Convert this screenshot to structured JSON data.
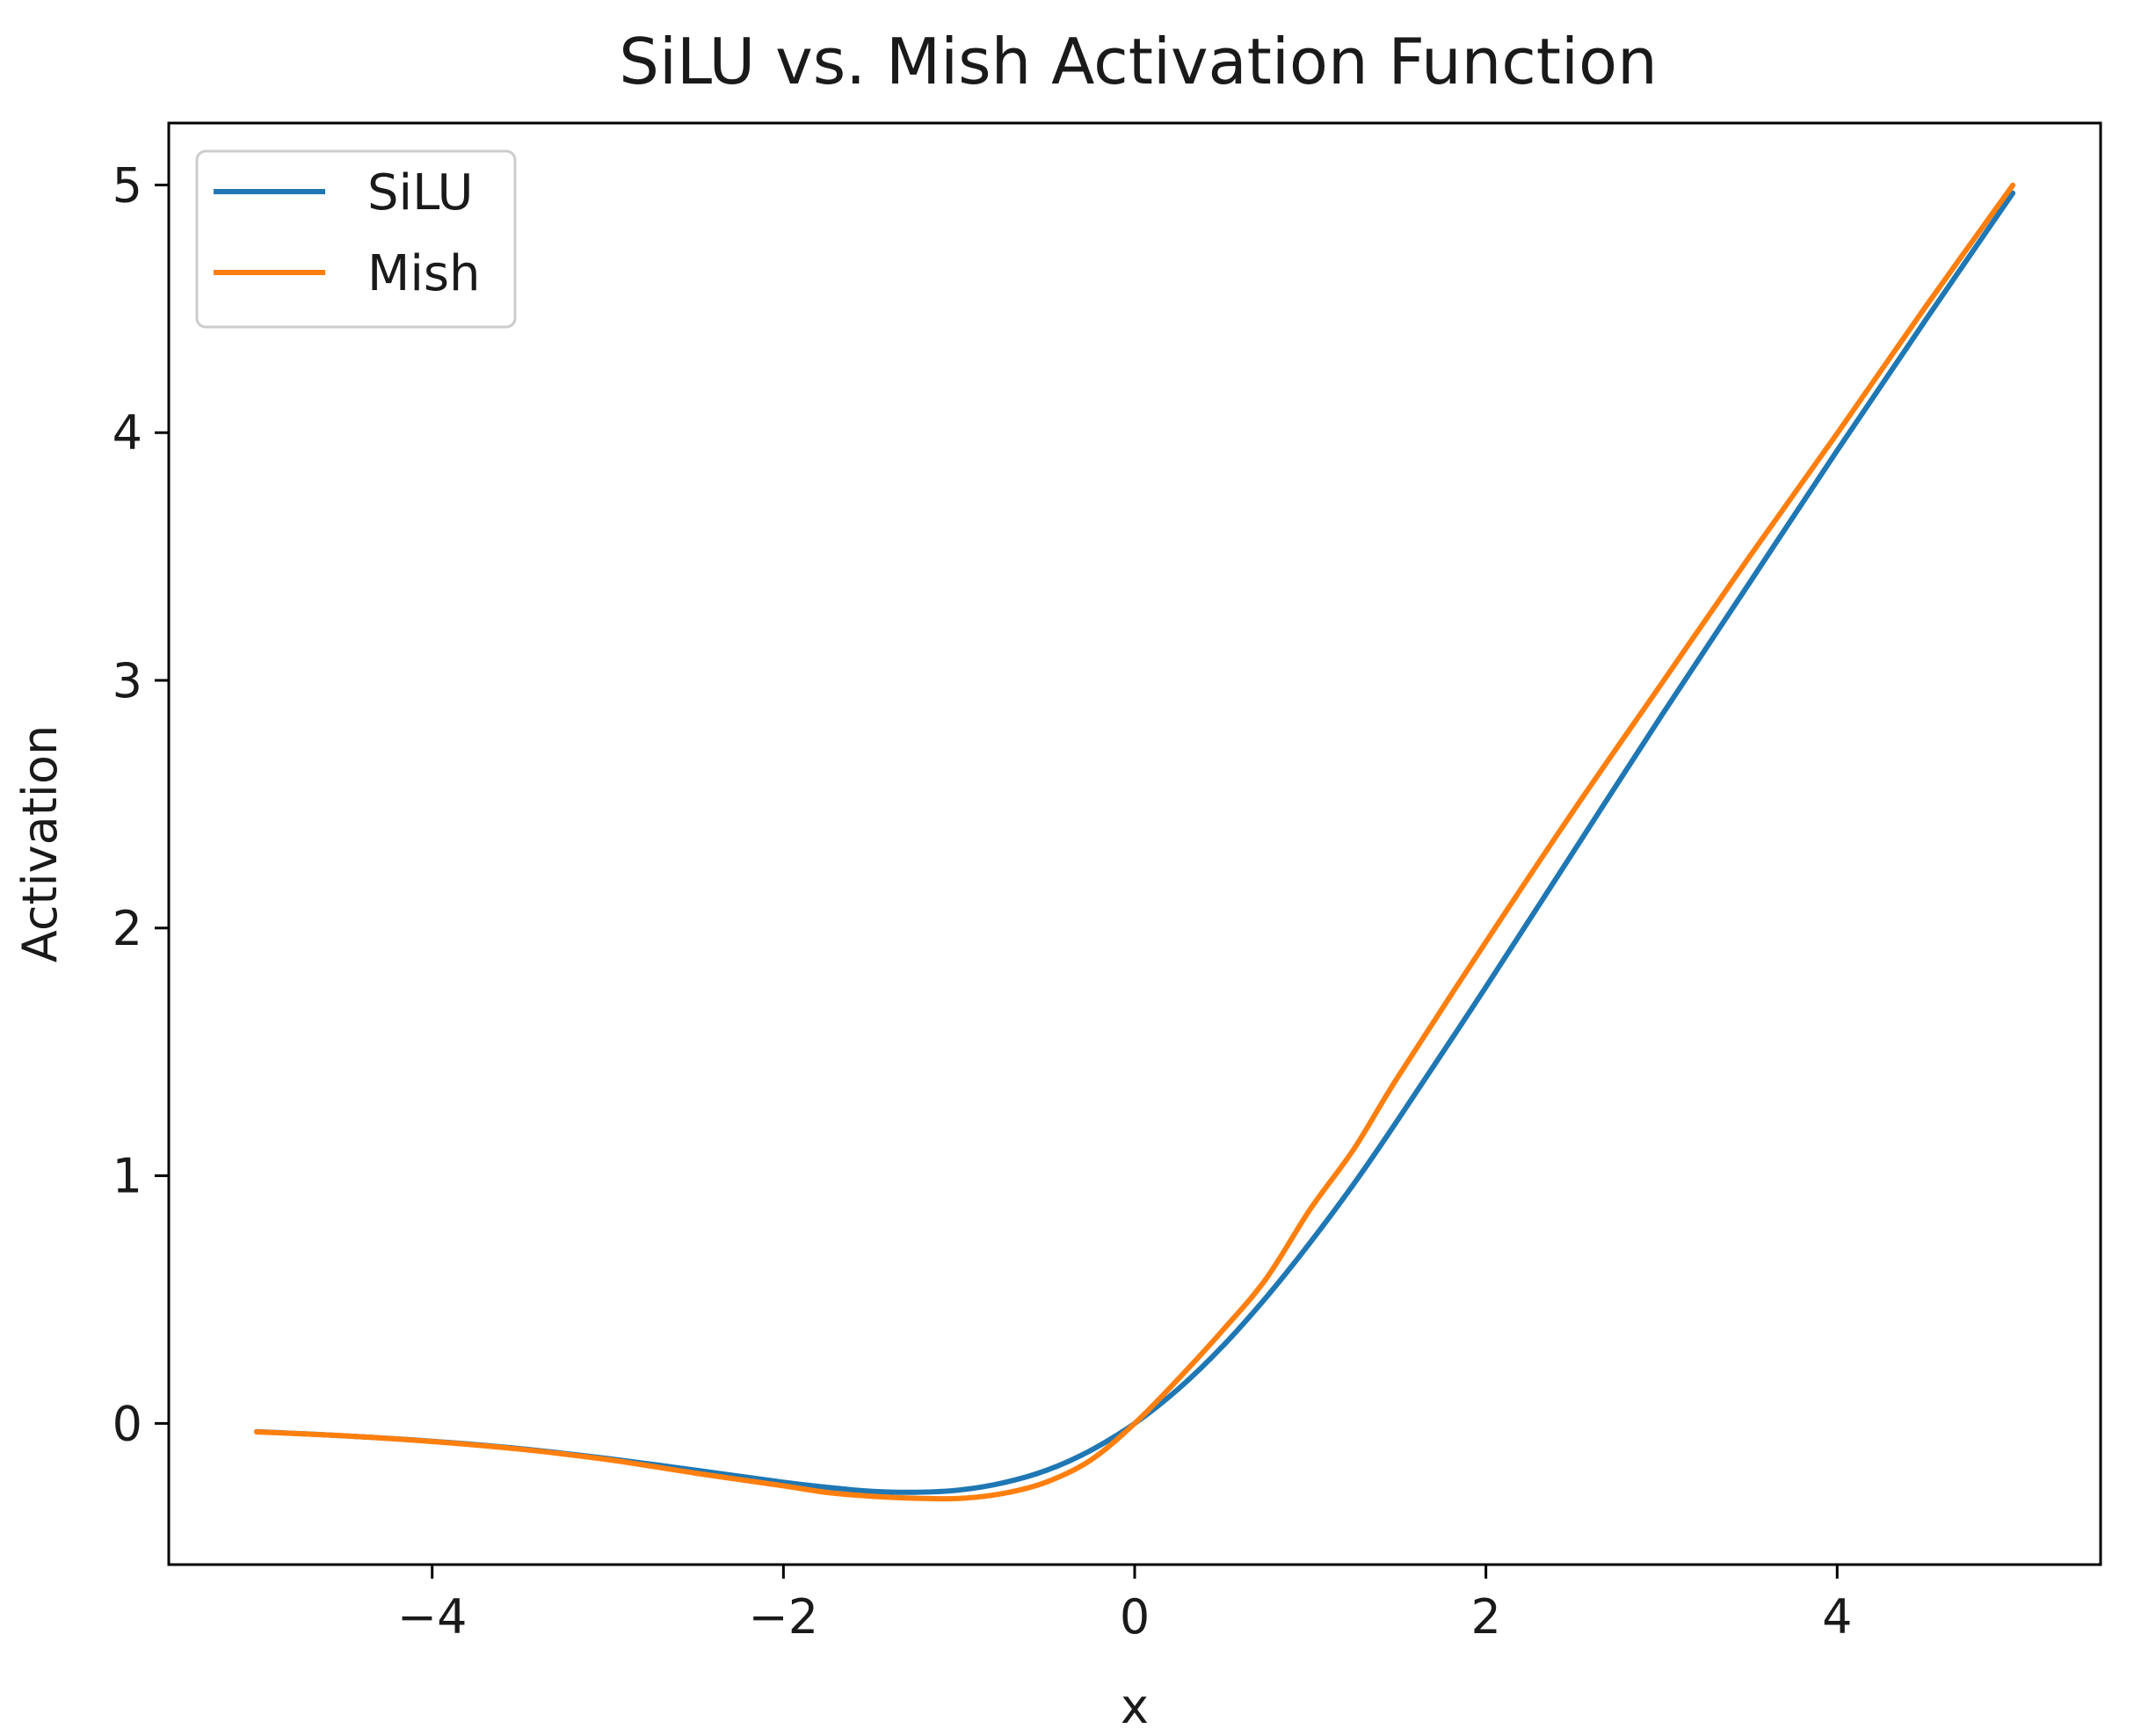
{
  "chart_data": {
    "type": "line",
    "title": "SiLU vs. Mish Activation Function",
    "xlabel": "x",
    "ylabel": "Activation",
    "xlim": [
      -5.5,
      5.5
    ],
    "ylim": [
      -0.57,
      5.25
    ],
    "xticks": [
      -4,
      -2,
      0,
      2,
      4
    ],
    "xtick_labels": [
      "−4",
      "−2",
      "0",
      "2",
      "4"
    ],
    "yticks": [
      0,
      1,
      2,
      3,
      4,
      5
    ],
    "ytick_labels": [
      "0",
      "1",
      "2",
      "3",
      "4",
      "5"
    ],
    "grid": false,
    "legend_position": "top-left",
    "x": [
      -5.0,
      -4.5,
      -4.0,
      -3.5,
      -3.0,
      -2.5,
      -2.0,
      -1.75,
      -1.5,
      -1.25,
      -1.0,
      -0.75,
      -0.5,
      -0.25,
      0.0,
      0.25,
      0.5,
      0.75,
      1.0,
      1.25,
      1.5,
      2.0,
      2.5,
      3.0,
      3.5,
      4.0,
      4.5,
      5.0
    ],
    "series": [
      {
        "name": "SiLU",
        "color": "#1f77b4",
        "values": [
          -0.033,
          -0.05,
          -0.072,
          -0.102,
          -0.142,
          -0.189,
          -0.238,
          -0.258,
          -0.274,
          -0.278,
          -0.269,
          -0.24,
          -0.189,
          -0.109,
          0.0,
          0.14,
          0.311,
          0.51,
          0.731,
          0.969,
          1.227,
          1.762,
          2.31,
          2.858,
          3.393,
          3.928,
          4.451,
          4.967
        ]
      },
      {
        "name": "Mish",
        "color": "#ff7f0e",
        "values": [
          -0.034,
          -0.05,
          -0.073,
          -0.104,
          -0.146,
          -0.201,
          -0.252,
          -0.279,
          -0.294,
          -0.302,
          -0.303,
          -0.283,
          -0.236,
          -0.148,
          0.0,
          0.181,
          0.375,
          0.586,
          0.865,
          1.11,
          1.4,
          1.944,
          2.475,
          2.987,
          3.499,
          3.997,
          4.505,
          4.999
        ]
      }
    ]
  }
}
